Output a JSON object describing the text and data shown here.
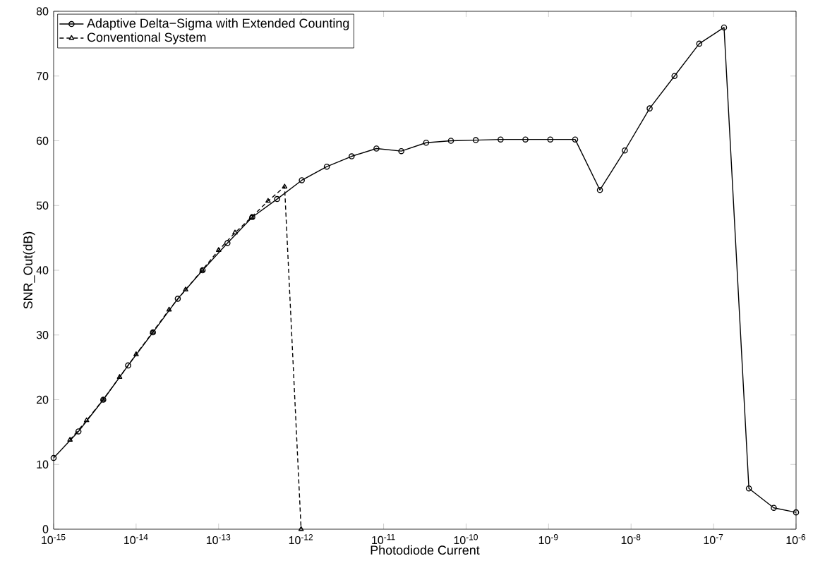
{
  "chart_data": {
    "type": "line",
    "xlabel": "Photodiode Current",
    "ylabel": "SNR_Out(dB)",
    "log": "x",
    "grid": false,
    "legend": "top left",
    "xlim": [
      1e-15,
      1e-06
    ],
    "ylim": [
      0,
      80
    ],
    "xticks": [
      {
        "value": 1e-15,
        "label": "10$^{-15}$"
      },
      {
        "value": 1e-14,
        "label": "10$^{-14}$"
      },
      {
        "value": 1e-13,
        "label": "10$^{-13}$"
      },
      {
        "value": 1e-12,
        "label": "10$^{-12}$"
      },
      {
        "value": 1e-11,
        "label": "10$^{-11}$"
      },
      {
        "value": 1e-10,
        "label": "10$^{-10}$"
      },
      {
        "value": 1e-09,
        "label": "10$^{-9}$"
      },
      {
        "value": 1e-08,
        "label": "10$^{-8}$"
      },
      {
        "value": 1e-07,
        "label": "10$^{-7}$"
      },
      {
        "value": 1e-06,
        "label": "10$^{-6}$"
      }
    ],
    "yticks": [
      0,
      10,
      20,
      30,
      40,
      50,
      60,
      70,
      80
    ],
    "series": [
      {
        "name": "Adaptive Delta−Sigma with Extended Counting",
        "color": "#000000",
        "marker": "circle",
        "line_style": "solid",
        "x": [
          1e-15,
          2e-15,
          4e-15,
          8e-15,
          1.6e-14,
          3.2e-14,
          6.4e-14,
          1.28e-13,
          2.56e-13,
          5.12e-13,
          1.02e-12,
          2.05e-12,
          4.1e-12,
          8.19e-12,
          1.64e-11,
          3.28e-11,
          6.55e-11,
          1.31e-10,
          2.62e-10,
          5.24e-10,
          1.05e-09,
          2.1e-09,
          4.19e-09,
          8.39e-09,
          1.68e-08,
          3.36e-08,
          6.71e-08,
          1.34e-07,
          2.68e-07,
          5.37e-07,
          1e-06
        ],
        "values": [
          11.0,
          15.1,
          20.0,
          25.3,
          30.4,
          35.6,
          40.0,
          44.2,
          48.2,
          51.0,
          53.9,
          56.0,
          57.6,
          58.8,
          58.4,
          59.7,
          60.0,
          60.1,
          60.2,
          60.2,
          60.2,
          60.2,
          52.4,
          58.5,
          65.0,
          70.0,
          75.0,
          77.5,
          6.3,
          3.3,
          2.6
        ]
      },
      {
        "name": "Conventional System",
        "color": "#000000",
        "marker": "triangle",
        "line_style": "dashed",
        "x": [
          1.58e-15,
          2.51e-15,
          3.98e-15,
          6.31e-15,
          1e-14,
          1.58e-14,
          2.51e-14,
          3.98e-14,
          6.31e-14,
          1e-13,
          1.58e-13,
          2.51e-13,
          3.98e-13,
          6.31e-13,
          1e-12
        ],
        "values": [
          13.8,
          16.8,
          20.0,
          23.5,
          27.0,
          30.4,
          33.9,
          37.0,
          40.0,
          43.1,
          45.8,
          48.2,
          50.7,
          52.9,
          0
        ]
      }
    ]
  }
}
